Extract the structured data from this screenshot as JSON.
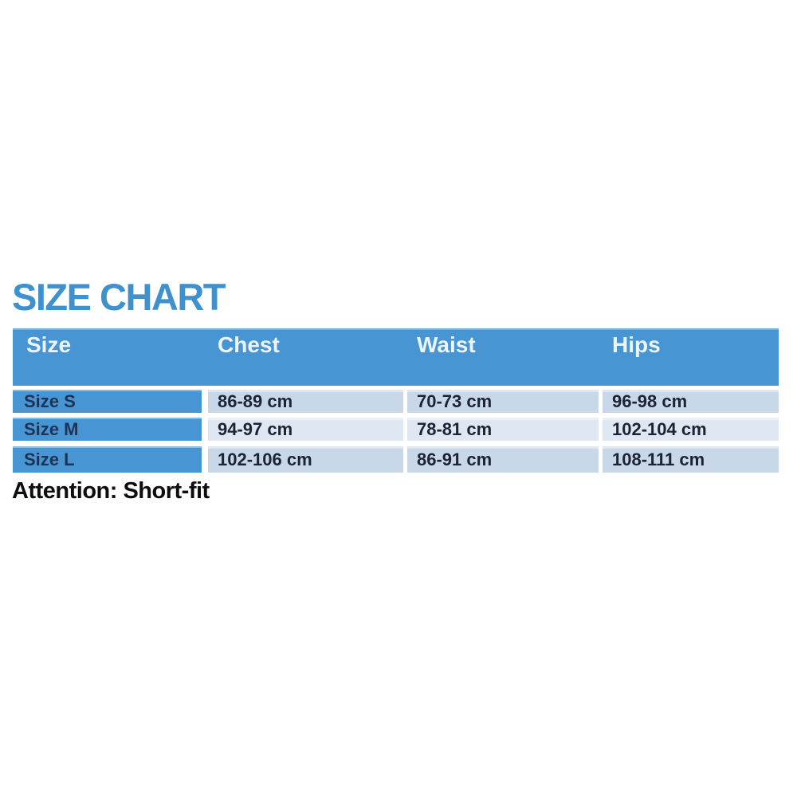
{
  "title": "SIZE CHART",
  "note": "Attention: Short-fit",
  "table": {
    "headers": [
      "Size",
      "Chest",
      "Waist",
      "Hips"
    ],
    "rows": [
      {
        "label": "Size S",
        "chest": "86-89 cm",
        "waist": "70-73 cm",
        "hips": "96-98 cm"
      },
      {
        "label": "Size M",
        "chest": "94-97 cm",
        "waist": "78-81 cm",
        "hips": "102-104 cm"
      },
      {
        "label": "Size L",
        "chest": "102-106 cm",
        "waist": "86-91 cm",
        "hips": "108-111 cm"
      }
    ]
  },
  "colors": {
    "title_blue": "#3f91ce",
    "header_blue": "#4795d3",
    "row_blue": "#c9d8e9",
    "row_blue_light": "#dee7f2",
    "header_text": "#ecf5fc",
    "label_text": "#1d3355",
    "value_text": "#1b2435",
    "note_text": "#0d0d0d",
    "background": "#ffffff"
  },
  "chart_data": {
    "type": "table",
    "title": "SIZE CHART",
    "columns": [
      "Size",
      "Chest",
      "Waist",
      "Hips"
    ],
    "rows": [
      [
        "Size S",
        "86-89 cm",
        "70-73 cm",
        "96-98 cm"
      ],
      [
        "Size M",
        "94-97 cm",
        "78-81 cm",
        "102-104 cm"
      ],
      [
        "Size L",
        "102-106 cm",
        "86-91 cm",
        "108-111 cm"
      ]
    ],
    "units": "cm",
    "note": "Attention: Short-fit",
    "layout": "header row and size-label column in medium blue, measurement cells in alternating light blue bands separated by white gutters"
  }
}
